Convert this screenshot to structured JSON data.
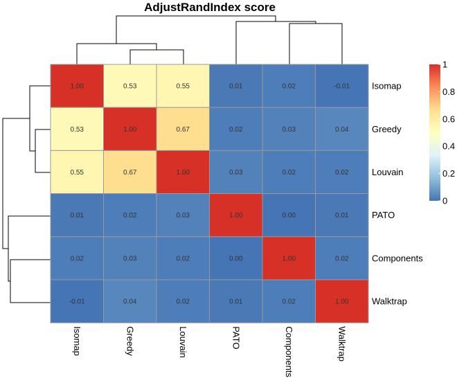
{
  "chart_data": {
    "type": "heatmap",
    "title": "AdjustRandIndex score",
    "rows": [
      "Isomap",
      "Greedy",
      "Louvain",
      "PATO",
      "Components",
      "Walktrap"
    ],
    "columns": [
      "Isomap",
      "Greedy",
      "Louvain",
      "PATO",
      "Components",
      "Walktrap"
    ],
    "values": [
      [
        1.0,
        0.53,
        0.55,
        0.01,
        0.02,
        -0.01
      ],
      [
        0.53,
        1.0,
        0.67,
        0.02,
        0.03,
        0.04
      ],
      [
        0.55,
        0.67,
        1.0,
        0.03,
        0.02,
        0.02
      ],
      [
        0.01,
        0.02,
        0.03,
        1.0,
        0.0,
        0.01
      ],
      [
        0.02,
        0.03,
        0.02,
        0.0,
        1.0,
        0.02
      ],
      [
        -0.01,
        0.04,
        0.02,
        0.01,
        0.02,
        1.0
      ]
    ],
    "cell_labels": [
      [
        "1.00",
        "0.53",
        "0.55",
        "0.01",
        "0.02",
        "-0.01"
      ],
      [
        "0.53",
        "1.00",
        "0.67",
        "0.02",
        "0.03",
        "0.04"
      ],
      [
        "0.55",
        "0.67",
        "1.00",
        "0.03",
        "0.02",
        "0.02"
      ],
      [
        "0.01",
        "0.02",
        "0.03",
        "1.00",
        "0.00",
        "0.01"
      ],
      [
        "0.02",
        "0.03",
        "0.02",
        "0.00",
        "1.00",
        "0.02"
      ],
      [
        "-0.01",
        "0.04",
        "0.02",
        "0.01",
        "0.02",
        "1.00"
      ]
    ],
    "legend": {
      "range": [
        0,
        1
      ],
      "ticks": [
        "0",
        "0.2",
        "0.4",
        "0.6",
        "0.8",
        "1"
      ],
      "tick_values": [
        0,
        0.2,
        0.4,
        0.6,
        0.8,
        1
      ],
      "colors": [
        "#4575b4",
        "#91bfdb",
        "#e0f3f8",
        "#ffffbf",
        "#fee090",
        "#fc8d59",
        "#d73027"
      ]
    },
    "grid_color": "#999999",
    "dendrograms": [
      "row",
      "column"
    ]
  }
}
